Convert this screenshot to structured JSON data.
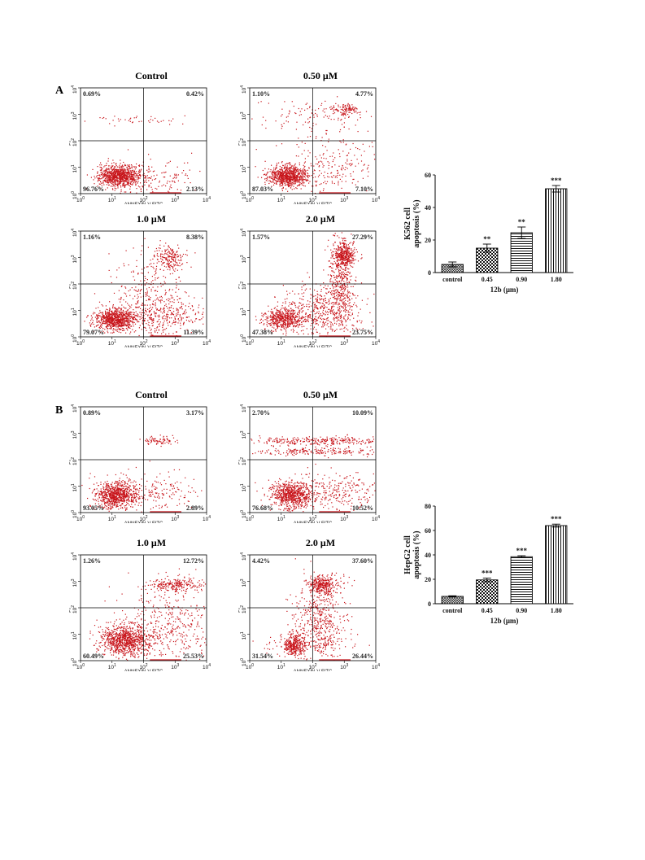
{
  "panels": [
    {
      "letter": "A",
      "flow": [
        {
          "title": "Control",
          "ul": "0.69%",
          "ur": "0.42%",
          "ll": "96.76%",
          "lr": "2.13%"
        },
        {
          "title": "0.50 μM",
          "ul": "1.10%",
          "ur": "4.77%",
          "ll": "87.03%",
          "lr": "7.10%"
        },
        {
          "title": "1.0 μM",
          "ul": "1.16%",
          "ur": "8.38%",
          "ll": "79.07%",
          "lr": "11.39%"
        },
        {
          "title": "2.0 μM",
          "ul": "1.57%",
          "ur": "27.29%",
          "ll": "47.38%",
          "lr": "23.75%"
        }
      ]
    },
    {
      "letter": "B",
      "flow": [
        {
          "title": "Control",
          "ul": "0.89%",
          "ur": "3.17%",
          "ll": "93.05%",
          "lr": "2.89%"
        },
        {
          "title": "0.50 μM",
          "ul": "2.70%",
          "ur": "10.09%",
          "ll": "76.68%",
          "lr": "10.52%"
        },
        {
          "title": "1.0 μM",
          "ul": "1.26%",
          "ur": "12.72%",
          "ll": "60.49%",
          "lr": "25.53%"
        },
        {
          "title": "2.0 μM",
          "ul": "4.42%",
          "ur": "37.60%",
          "ll": "31.54%",
          "lr": "26.44%"
        }
      ]
    }
  ],
  "flow_axes": {
    "xlabel": "ANNEXIN-V-FITC",
    "ylabel": "PI",
    "tick_base": "10",
    "tick_exps": [
      "0",
      "1",
      "2",
      "3",
      "4"
    ]
  },
  "chart_data": [
    {
      "type": "bar",
      "categories": [
        "control",
        "0.45",
        "0.90",
        "1.80"
      ],
      "values": [
        5,
        15,
        24.5,
        51.5
      ],
      "errors": [
        1.5,
        2.5,
        3.5,
        2
      ],
      "significance": [
        "",
        "**",
        "**",
        "***"
      ],
      "ylabel": "K562 cell apoptosis (%)",
      "ylabel_lines": [
        "K562 cell",
        "apoptosis (%)"
      ],
      "xlabel": "12b (μm)",
      "ylim": [
        0,
        60
      ],
      "yticks": [
        0,
        20,
        40,
        60
      ],
      "patterns": [
        "crosshatch",
        "checker",
        "horizontal",
        "vertical"
      ]
    },
    {
      "type": "bar",
      "categories": [
        "control",
        "0.45",
        "0.90",
        "1.80"
      ],
      "values": [
        6,
        19.5,
        38.5,
        64
      ],
      "errors": [
        0.5,
        1.5,
        0.8,
        1.2
      ],
      "significance": [
        "",
        "***",
        "***",
        "***"
      ],
      "ylabel": "HepG2 cell apoptosis (%)",
      "ylabel_lines": [
        "HepG2 cell",
        "apoptosis (%)"
      ],
      "xlabel": "12b (μm)",
      "ylim": [
        0,
        80
      ],
      "yticks": [
        0,
        20,
        40,
        60,
        80
      ],
      "patterns": [
        "crosshatch",
        "checker",
        "horizontal",
        "vertical"
      ]
    }
  ]
}
